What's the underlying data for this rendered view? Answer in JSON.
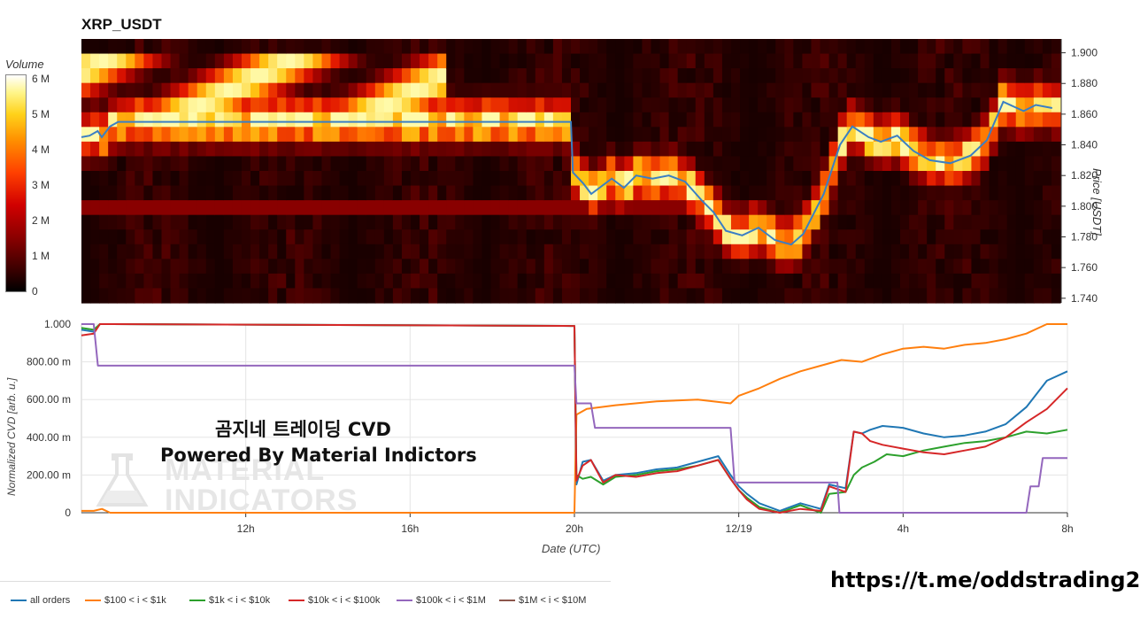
{
  "title": "XRP_USDT",
  "heatmap": {
    "colorbar_title": "Volume",
    "colorbar_ticks": [
      "6 M",
      "5 M",
      "4 M",
      "3 M",
      "2 M",
      "1 M",
      "0"
    ],
    "price_axis_title": "Price [USDT]",
    "price_ticks": [
      "1.900",
      "1.880",
      "1.860",
      "1.840",
      "1.820",
      "1.800",
      "1.780",
      "1.760",
      "1.740"
    ],
    "price_range": [
      1.737,
      1.909
    ]
  },
  "chart_data": {
    "type": "line",
    "xlabel": "Date (UTC)",
    "ylabel": "Normalized CVD [arb. u.]",
    "x_ticks": [
      "12h",
      "16h",
      "20h",
      "12/19",
      "4h",
      "8h"
    ],
    "x_hours": [
      0,
      24
    ],
    "x_tick_hours": [
      4,
      8,
      12,
      16,
      20,
      24
    ],
    "y_ticks": [
      "1.000",
      "800.00 m",
      "600.00 m",
      "400.00 m",
      "200.00 m",
      "0"
    ],
    "ylim": [
      0,
      1
    ],
    "grid": true,
    "legend_position": "bottom",
    "price_line": {
      "name": "XRP_USDT",
      "x": [
        0,
        0.2,
        0.4,
        0.5,
        0.7,
        0.9,
        12,
        12.05,
        12.3,
        12.5,
        13,
        13.3,
        13.6,
        14,
        14.4,
        14.8,
        15,
        15.2,
        15.5,
        15.8,
        16.2,
        16.6,
        17,
        17.4,
        17.7,
        18.2,
        18.6,
        18.9,
        19.3,
        19.6,
        20,
        20.4,
        20.8,
        21.3,
        21.8,
        22.2,
        22.6,
        23.1,
        23.4,
        23.8
      ],
      "y": [
        1.845,
        1.846,
        1.849,
        1.845,
        1.852,
        1.855,
        1.855,
        1.822,
        1.815,
        1.808,
        1.818,
        1.812,
        1.82,
        1.818,
        1.82,
        1.816,
        1.81,
        1.804,
        1.796,
        1.784,
        1.781,
        1.786,
        1.778,
        1.775,
        1.782,
        1.808,
        1.84,
        1.852,
        1.845,
        1.842,
        1.846,
        1.836,
        1.83,
        1.828,
        1.833,
        1.843,
        1.868,
        1.862,
        1.866,
        1.864
      ]
    },
    "series": [
      {
        "name": "all orders",
        "color": "#1f77b4",
        "x": [
          0,
          0.3,
          0.45,
          12,
          12.05,
          12.2,
          12.4,
          12.7,
          13,
          13.5,
          14,
          14.5,
          15,
          15.5,
          15.8,
          16,
          16.2,
          16.5,
          17,
          17.5,
          18,
          18.2,
          18.6,
          18.8,
          19,
          19.2,
          19.5,
          20,
          20.5,
          21,
          21.5,
          22,
          22.5,
          23,
          23.5,
          24
        ],
        "y": [
          0.97,
          0.96,
          1.0,
          0.99,
          0.15,
          0.27,
          0.28,
          0.17,
          0.2,
          0.21,
          0.23,
          0.24,
          0.27,
          0.3,
          0.2,
          0.14,
          0.1,
          0.05,
          0.01,
          0.05,
          0.02,
          0.15,
          0.13,
          0.43,
          0.42,
          0.44,
          0.46,
          0.45,
          0.42,
          0.4,
          0.41,
          0.43,
          0.47,
          0.56,
          0.7,
          0.75
        ]
      },
      {
        "name": "$100 < i < $1k",
        "color": "#ff7f0e",
        "x": [
          0,
          0.3,
          0.5,
          0.7,
          12,
          12.05,
          12.3,
          13,
          14,
          15,
          15.8,
          16,
          16.5,
          17,
          17.5,
          18,
          18.5,
          19,
          19.5,
          20,
          20.5,
          21,
          21.5,
          22,
          22.5,
          23,
          23.5,
          24
        ],
        "y": [
          0.01,
          0.01,
          0.02,
          0.0,
          0.0,
          0.52,
          0.55,
          0.57,
          0.59,
          0.6,
          0.58,
          0.62,
          0.66,
          0.71,
          0.75,
          0.78,
          0.81,
          0.8,
          0.84,
          0.87,
          0.88,
          0.87,
          0.89,
          0.9,
          0.92,
          0.95,
          1.0,
          1.0
        ]
      },
      {
        "name": "$1k < i < $10k",
        "color": "#2ca02c",
        "x": [
          0,
          0.3,
          0.45,
          12,
          12.05,
          12.2,
          12.4,
          12.7,
          13,
          13.5,
          14,
          14.5,
          15,
          15.5,
          15.8,
          16,
          16.2,
          16.5,
          17,
          17.5,
          18,
          18.2,
          18.6,
          18.8,
          19,
          19.3,
          19.6,
          20,
          20.5,
          21,
          21.5,
          22,
          22.5,
          23,
          23.5,
          24
        ],
        "y": [
          0.98,
          0.97,
          1.0,
          0.99,
          0.2,
          0.18,
          0.19,
          0.15,
          0.19,
          0.2,
          0.22,
          0.23,
          0.25,
          0.28,
          0.18,
          0.12,
          0.08,
          0.03,
          0.0,
          0.04,
          0.0,
          0.1,
          0.11,
          0.2,
          0.24,
          0.27,
          0.31,
          0.3,
          0.33,
          0.35,
          0.37,
          0.38,
          0.4,
          0.43,
          0.42,
          0.44
        ]
      },
      {
        "name": "$10k < i < $100k",
        "color": "#d62728",
        "x": [
          0,
          0.3,
          0.45,
          12,
          12.05,
          12.2,
          12.4,
          12.7,
          13,
          13.5,
          14,
          14.5,
          15,
          15.5,
          15.8,
          16,
          16.2,
          16.5,
          17,
          17.5,
          18,
          18.2,
          18.6,
          18.8,
          19,
          19.2,
          19.5,
          20,
          20.5,
          21,
          21.5,
          22,
          22.5,
          23,
          23.5,
          24
        ],
        "y": [
          0.94,
          0.95,
          1.0,
          0.99,
          0.17,
          0.25,
          0.28,
          0.16,
          0.2,
          0.19,
          0.21,
          0.22,
          0.25,
          0.28,
          0.18,
          0.12,
          0.07,
          0.02,
          0.0,
          0.02,
          0.01,
          0.14,
          0.11,
          0.43,
          0.42,
          0.38,
          0.36,
          0.34,
          0.32,
          0.31,
          0.33,
          0.35,
          0.4,
          0.48,
          0.55,
          0.66
        ]
      },
      {
        "name": "$100k < i < $1M",
        "color": "#9467bd",
        "x": [
          0,
          0.3,
          0.4,
          12,
          12.05,
          12.4,
          12.5,
          15.8,
          15.9,
          18.4,
          18.45,
          23,
          23.1,
          23.3,
          23.4,
          24
        ],
        "y": [
          1.0,
          1.0,
          0.78,
          0.78,
          0.58,
          0.58,
          0.45,
          0.45,
          0.16,
          0.16,
          0.0,
          0.0,
          0.14,
          0.14,
          0.29,
          0.29
        ]
      },
      {
        "name": "$1M < i < $10M",
        "color": "#8c564b",
        "x": [],
        "y": []
      }
    ]
  },
  "overlay": {
    "line1": "곰지네 트레이딩 CVD",
    "line2": "Powered By Material Indictors",
    "watermark_line1": "MATERIAL",
    "watermark_line2": "INDICATORS"
  },
  "footer_link": "https://t.me/oddstrading2",
  "colors": {
    "heat_low": "#000000",
    "heat_mid": "#d10000",
    "heat_high": "#ffffff",
    "price_line": "#3a7fc4"
  }
}
